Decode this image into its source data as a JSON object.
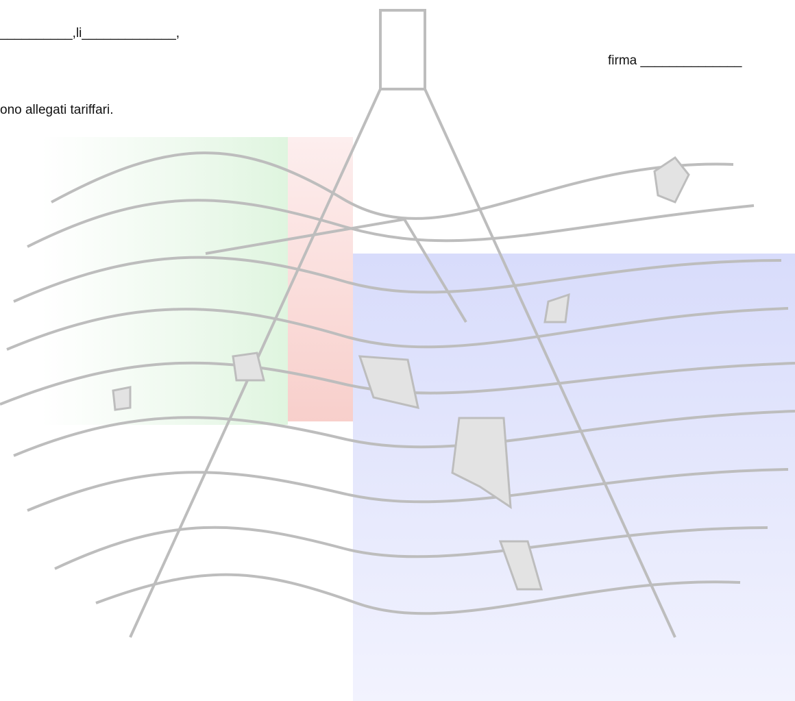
{
  "document": {
    "place_date": "__________,li_____________,",
    "signature": "firma ______________",
    "note": "ono allegati tariffari."
  }
}
